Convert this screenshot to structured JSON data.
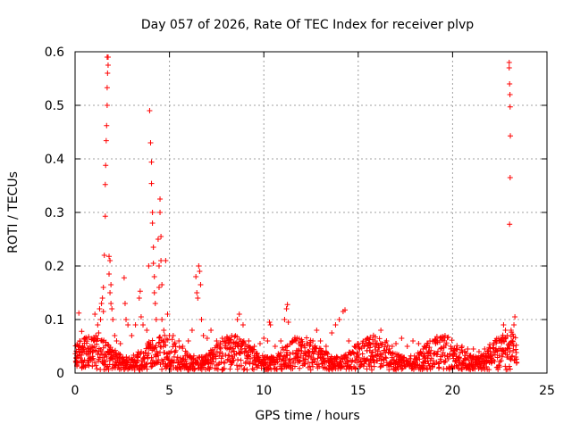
{
  "chart_data": {
    "type": "scatter",
    "title": "Day 057 of 2026, Rate Of TEC Index for receiver plvp",
    "xlabel": "GPS time / hours",
    "ylabel": "ROTI / TECUs",
    "xlim": [
      0,
      25
    ],
    "ylim": [
      0,
      0.6
    ],
    "xticks": [
      0,
      5,
      10,
      15,
      20,
      25
    ],
    "yticks": [
      0,
      0.1,
      0.2,
      0.3,
      0.4,
      0.5,
      0.6
    ],
    "grid": true,
    "marker": "plus",
    "color": "#ff0000",
    "x_range_of_data": [
      0.0,
      23.4
    ],
    "series": [
      {
        "name": "ROTI",
        "points": [
          [
            0.05,
            0.02
          ],
          [
            0.1,
            0.013
          ],
          [
            0.15,
            0.03
          ],
          [
            0.2,
            0.112
          ],
          [
            0.25,
            0.06
          ],
          [
            0.3,
            0.045
          ],
          [
            0.35,
            0.078
          ],
          [
            0.4,
            0.05
          ],
          [
            0.45,
            0.02
          ],
          [
            0.5,
            0.065
          ],
          [
            0.6,
            0.04
          ],
          [
            0.7,
            0.035
          ],
          [
            0.8,
            0.05
          ],
          [
            0.9,
            0.05
          ],
          [
            1.0,
            0.06
          ],
          [
            1.05,
            0.11
          ],
          [
            1.1,
            0.07
          ],
          [
            1.2,
            0.09
          ],
          [
            1.25,
            0.075
          ],
          [
            1.3,
            0.12
          ],
          [
            1.35,
            0.1
          ],
          [
            1.4,
            0.13
          ],
          [
            1.45,
            0.14
          ],
          [
            1.5,
            0.115
          ],
          [
            1.5,
            0.16
          ],
          [
            1.55,
            0.22
          ],
          [
            1.6,
            0.293
          ],
          [
            1.6,
            0.352
          ],
          [
            1.62,
            0.388
          ],
          [
            1.65,
            0.434
          ],
          [
            1.67,
            0.462
          ],
          [
            1.7,
            0.5
          ],
          [
            1.7,
            0.533
          ],
          [
            1.72,
            0.56
          ],
          [
            1.75,
            0.575
          ],
          [
            1.75,
            0.59
          ],
          [
            1.7,
            0.59
          ],
          [
            1.8,
            0.218
          ],
          [
            1.8,
            0.185
          ],
          [
            1.85,
            0.21
          ],
          [
            1.85,
            0.15
          ],
          [
            1.9,
            0.165
          ],
          [
            1.9,
            0.13
          ],
          [
            1.95,
            0.12
          ],
          [
            2.0,
            0.1
          ],
          [
            2.1,
            0.07
          ],
          [
            2.2,
            0.06
          ],
          [
            2.4,
            0.055
          ],
          [
            2.6,
            0.178
          ],
          [
            2.65,
            0.13
          ],
          [
            2.7,
            0.1
          ],
          [
            2.8,
            0.09
          ],
          [
            3.0,
            0.07
          ],
          [
            3.2,
            0.09
          ],
          [
            3.4,
            0.14
          ],
          [
            3.45,
            0.153
          ],
          [
            3.5,
            0.105
          ],
          [
            3.6,
            0.09
          ],
          [
            3.8,
            0.08
          ],
          [
            3.9,
            0.2
          ],
          [
            3.95,
            0.49
          ],
          [
            4.0,
            0.43
          ],
          [
            4.05,
            0.394
          ],
          [
            4.05,
            0.354
          ],
          [
            4.1,
            0.3
          ],
          [
            4.1,
            0.28
          ],
          [
            4.15,
            0.235
          ],
          [
            4.15,
            0.205
          ],
          [
            4.2,
            0.18
          ],
          [
            4.2,
            0.15
          ],
          [
            4.25,
            0.13
          ],
          [
            4.3,
            0.1
          ],
          [
            4.4,
            0.25
          ],
          [
            4.45,
            0.2
          ],
          [
            4.45,
            0.16
          ],
          [
            4.5,
            0.325
          ],
          [
            4.5,
            0.3
          ],
          [
            4.55,
            0.255
          ],
          [
            4.55,
            0.21
          ],
          [
            4.6,
            0.165
          ],
          [
            4.6,
            0.1
          ],
          [
            4.7,
            0.08
          ],
          [
            4.8,
            0.21
          ],
          [
            4.9,
            0.11
          ],
          [
            5.0,
            0.07
          ],
          [
            5.2,
            0.07
          ],
          [
            5.5,
            0.06
          ],
          [
            5.7,
            0.05
          ],
          [
            6.0,
            0.06
          ],
          [
            6.2,
            0.08
          ],
          [
            6.4,
            0.18
          ],
          [
            6.45,
            0.15
          ],
          [
            6.5,
            0.14
          ],
          [
            6.55,
            0.2
          ],
          [
            6.6,
            0.19
          ],
          [
            6.65,
            0.165
          ],
          [
            6.7,
            0.1
          ],
          [
            6.8,
            0.07
          ],
          [
            7.0,
            0.065
          ],
          [
            7.2,
            0.08
          ],
          [
            7.5,
            0.06
          ],
          [
            7.8,
            0.065
          ],
          [
            8.0,
            0.06
          ],
          [
            8.3,
            0.07
          ],
          [
            8.6,
            0.1
          ],
          [
            8.7,
            0.11
          ],
          [
            8.9,
            0.09
          ],
          [
            9.2,
            0.06
          ],
          [
            9.5,
            0.05
          ],
          [
            9.8,
            0.055
          ],
          [
            10.0,
            0.065
          ],
          [
            10.2,
            0.06
          ],
          [
            10.3,
            0.095
          ],
          [
            10.35,
            0.09
          ],
          [
            10.6,
            0.05
          ],
          [
            10.9,
            0.06
          ],
          [
            11.1,
            0.1
          ],
          [
            11.2,
            0.12
          ],
          [
            11.25,
            0.128
          ],
          [
            11.3,
            0.095
          ],
          [
            11.5,
            0.06
          ],
          [
            11.7,
            0.06
          ],
          [
            12.0,
            0.05
          ],
          [
            12.3,
            0.055
          ],
          [
            12.6,
            0.06
          ],
          [
            12.8,
            0.08
          ],
          [
            13.0,
            0.06
          ],
          [
            13.3,
            0.05
          ],
          [
            13.6,
            0.075
          ],
          [
            13.8,
            0.09
          ],
          [
            14.0,
            0.1
          ],
          [
            14.2,
            0.115
          ],
          [
            14.3,
            0.118
          ],
          [
            14.5,
            0.06
          ],
          [
            14.8,
            0.05
          ],
          [
            15.0,
            0.055
          ],
          [
            15.3,
            0.05
          ],
          [
            15.6,
            0.055
          ],
          [
            15.9,
            0.06
          ],
          [
            16.2,
            0.08
          ],
          [
            16.5,
            0.06
          ],
          [
            16.8,
            0.05
          ],
          [
            17.0,
            0.055
          ],
          [
            17.3,
            0.065
          ],
          [
            17.6,
            0.05
          ],
          [
            17.9,
            0.06
          ],
          [
            18.2,
            0.055
          ],
          [
            18.5,
            0.05
          ],
          [
            18.8,
            0.06
          ],
          [
            19.1,
            0.055
          ],
          [
            19.4,
            0.065
          ],
          [
            19.6,
            0.07
          ],
          [
            19.9,
            0.05
          ],
          [
            20.2,
            0.045
          ],
          [
            20.5,
            0.05
          ],
          [
            20.8,
            0.045
          ],
          [
            21.1,
            0.045
          ],
          [
            21.4,
            0.04
          ],
          [
            21.7,
            0.045
          ],
          [
            22.0,
            0.04
          ],
          [
            22.3,
            0.045
          ],
          [
            22.5,
            0.06
          ],
          [
            22.7,
            0.09
          ],
          [
            22.8,
            0.08
          ],
          [
            22.9,
            0.07
          ],
          [
            23.0,
            0.58
          ],
          [
            23.0,
            0.57
          ],
          [
            23.02,
            0.54
          ],
          [
            23.04,
            0.52
          ],
          [
            23.05,
            0.497
          ],
          [
            23.06,
            0.443
          ],
          [
            23.05,
            0.365
          ],
          [
            23.02,
            0.278
          ],
          [
            23.1,
            0.08
          ],
          [
            23.15,
            0.06
          ],
          [
            23.25,
            0.09
          ],
          [
            23.3,
            0.105
          ],
          [
            23.35,
            0.03
          ],
          [
            23.4,
            0.02
          ]
        ]
      }
    ]
  }
}
